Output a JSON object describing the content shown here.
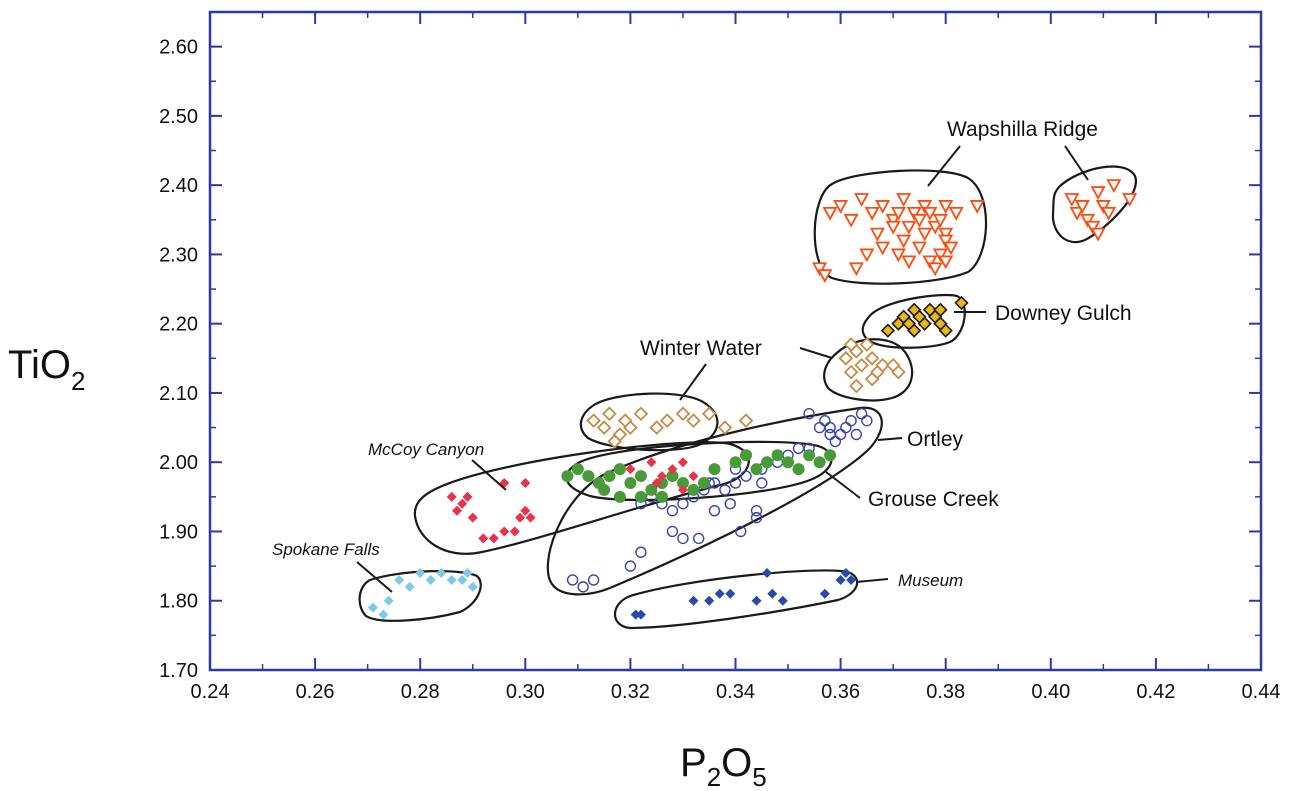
{
  "chart_data": {
    "type": "scatter",
    "title": "",
    "xlabel": {
      "main": "P",
      "sub1": "2",
      "mid": "O",
      "sub2": "5"
    },
    "ylabel": {
      "main": "TiO",
      "sub": "2"
    },
    "xlim": [
      0.24,
      0.44
    ],
    "ylim": [
      1.7,
      2.65
    ],
    "x_ticks": [
      "0.24",
      "0.26",
      "0.28",
      "0.30",
      "0.32",
      "0.34",
      "0.36",
      "0.38",
      "0.40",
      "0.42",
      "0.44"
    ],
    "y_ticks": [
      "1.70",
      "1.80",
      "1.90",
      "2.00",
      "2.10",
      "2.20",
      "2.30",
      "2.40",
      "2.50",
      "2.60"
    ],
    "grid": false,
    "colors": {
      "axis": "#2b3aa8",
      "outline": "#1a1a1a"
    },
    "series": [
      {
        "name": "Wapshilla Ridge",
        "marker": "triangle-down-open",
        "color": "#ff4a10",
        "points": [
          [
            0.358,
            2.36
          ],
          [
            0.36,
            2.37
          ],
          [
            0.362,
            2.35
          ],
          [
            0.364,
            2.38
          ],
          [
            0.366,
            2.36
          ],
          [
            0.368,
            2.37
          ],
          [
            0.37,
            2.35
          ],
          [
            0.371,
            2.36
          ],
          [
            0.372,
            2.38
          ],
          [
            0.373,
            2.34
          ],
          [
            0.374,
            2.36
          ],
          [
            0.375,
            2.35
          ],
          [
            0.376,
            2.37
          ],
          [
            0.377,
            2.36
          ],
          [
            0.378,
            2.34
          ],
          [
            0.379,
            2.35
          ],
          [
            0.38,
            2.33
          ],
          [
            0.38,
            2.37
          ],
          [
            0.382,
            2.36
          ],
          [
            0.367,
            2.33
          ],
          [
            0.368,
            2.31
          ],
          [
            0.371,
            2.3
          ],
          [
            0.373,
            2.29
          ],
          [
            0.375,
            2.31
          ],
          [
            0.377,
            2.29
          ],
          [
            0.378,
            2.28
          ],
          [
            0.379,
            2.3
          ],
          [
            0.38,
            2.32
          ],
          [
            0.381,
            2.31
          ],
          [
            0.376,
            2.33
          ],
          [
            0.356,
            2.28
          ],
          [
            0.357,
            2.27
          ],
          [
            0.365,
            2.3
          ],
          [
            0.363,
            2.28
          ],
          [
            0.386,
            2.37
          ],
          [
            0.372,
            2.32
          ],
          [
            0.37,
            2.34
          ],
          [
            0.38,
            2.29
          ],
          [
            0.404,
            2.38
          ],
          [
            0.405,
            2.36
          ],
          [
            0.406,
            2.37
          ],
          [
            0.407,
            2.35
          ],
          [
            0.408,
            2.34
          ],
          [
            0.409,
            2.39
          ],
          [
            0.41,
            2.37
          ],
          [
            0.411,
            2.36
          ],
          [
            0.412,
            2.4
          ],
          [
            0.415,
            2.38
          ],
          [
            0.409,
            2.33
          ]
        ]
      },
      {
        "name": "Downey Gulch",
        "marker": "diamond-yellow",
        "color": "#e8b817",
        "points": [
          [
            0.369,
            2.19
          ],
          [
            0.371,
            2.2
          ],
          [
            0.372,
            2.21
          ],
          [
            0.373,
            2.2
          ],
          [
            0.374,
            2.22
          ],
          [
            0.375,
            2.21
          ],
          [
            0.376,
            2.2
          ],
          [
            0.377,
            2.22
          ],
          [
            0.378,
            2.21
          ],
          [
            0.379,
            2.2
          ],
          [
            0.38,
            2.19
          ],
          [
            0.379,
            2.22
          ],
          [
            0.383,
            2.23
          ],
          [
            0.374,
            2.19
          ]
        ]
      },
      {
        "name": "Winter Water",
        "marker": "diamond-open",
        "color": "#c98a44",
        "points": [
          [
            0.361,
            2.15
          ],
          [
            0.362,
            2.13
          ],
          [
            0.363,
            2.16
          ],
          [
            0.364,
            2.14
          ],
          [
            0.365,
            2.17
          ],
          [
            0.366,
            2.15
          ],
          [
            0.367,
            2.13
          ],
          [
            0.368,
            2.14
          ],
          [
            0.366,
            2.12
          ],
          [
            0.363,
            2.11
          ],
          [
            0.37,
            2.14
          ],
          [
            0.371,
            2.13
          ],
          [
            0.362,
            2.17
          ],
          [
            0.313,
            2.06
          ],
          [
            0.315,
            2.05
          ],
          [
            0.316,
            2.07
          ],
          [
            0.318,
            2.04
          ],
          [
            0.319,
            2.06
          ],
          [
            0.32,
            2.05
          ],
          [
            0.322,
            2.07
          ],
          [
            0.325,
            2.05
          ],
          [
            0.327,
            2.06
          ],
          [
            0.33,
            2.07
          ],
          [
            0.332,
            2.06
          ],
          [
            0.335,
            2.07
          ],
          [
            0.338,
            2.05
          ],
          [
            0.342,
            2.06
          ],
          [
            0.317,
            2.03
          ]
        ]
      },
      {
        "name": "Ortley",
        "marker": "circle-open",
        "color": "#3a45a8",
        "points": [
          [
            0.354,
            2.07
          ],
          [
            0.356,
            2.05
          ],
          [
            0.357,
            2.06
          ],
          [
            0.358,
            2.05
          ],
          [
            0.36,
            2.04
          ],
          [
            0.361,
            2.05
          ],
          [
            0.362,
            2.06
          ],
          [
            0.363,
            2.04
          ],
          [
            0.364,
            2.07
          ],
          [
            0.365,
            2.06
          ],
          [
            0.359,
            2.03
          ],
          [
            0.354,
            2.02
          ],
          [
            0.35,
            2.01
          ],
          [
            0.348,
            2.0
          ],
          [
            0.345,
            1.99
          ],
          [
            0.342,
            1.98
          ],
          [
            0.34,
            1.97
          ],
          [
            0.338,
            1.96
          ],
          [
            0.336,
            1.97
          ],
          [
            0.334,
            1.96
          ],
          [
            0.332,
            1.95
          ],
          [
            0.33,
            1.94
          ],
          [
            0.328,
            1.93
          ],
          [
            0.326,
            1.94
          ],
          [
            0.324,
            1.95
          ],
          [
            0.322,
            1.94
          ],
          [
            0.33,
            1.89
          ],
          [
            0.333,
            1.89
          ],
          [
            0.322,
            1.87
          ],
          [
            0.32,
            1.85
          ],
          [
            0.313,
            1.83
          ],
          [
            0.309,
            1.83
          ],
          [
            0.311,
            1.82
          ],
          [
            0.335,
            1.97
          ],
          [
            0.34,
            1.99
          ],
          [
            0.345,
            1.97
          ],
          [
            0.344,
            1.93
          ],
          [
            0.344,
            1.92
          ],
          [
            0.341,
            1.9
          ],
          [
            0.339,
            1.94
          ],
          [
            0.336,
            1.93
          ],
          [
            0.356,
            2.0
          ],
          [
            0.352,
            2.02
          ],
          [
            0.358,
            2.04
          ],
          [
            0.328,
            1.9
          ]
        ]
      },
      {
        "name": "Grouse Creek",
        "marker": "circle-green",
        "color": "#4a9a3a",
        "points": [
          [
            0.308,
            1.98
          ],
          [
            0.31,
            1.99
          ],
          [
            0.312,
            1.98
          ],
          [
            0.314,
            1.97
          ],
          [
            0.316,
            1.98
          ],
          [
            0.318,
            1.99
          ],
          [
            0.32,
            1.97
          ],
          [
            0.322,
            1.98
          ],
          [
            0.324,
            1.96
          ],
          [
            0.326,
            1.97
          ],
          [
            0.328,
            1.98
          ],
          [
            0.33,
            1.97
          ],
          [
            0.332,
            1.96
          ],
          [
            0.334,
            1.97
          ],
          [
            0.336,
            1.99
          ],
          [
            0.34,
            2.0
          ],
          [
            0.342,
            2.01
          ],
          [
            0.344,
            1.99
          ],
          [
            0.346,
            2.0
          ],
          [
            0.348,
            2.01
          ],
          [
            0.35,
            2.0
          ],
          [
            0.352,
            1.99
          ],
          [
            0.354,
            2.01
          ],
          [
            0.356,
            2.0
          ],
          [
            0.358,
            2.01
          ],
          [
            0.318,
            1.95
          ],
          [
            0.322,
            1.95
          ],
          [
            0.326,
            1.95
          ],
          [
            0.315,
            1.96
          ]
        ]
      },
      {
        "name": "McCoy Canyon",
        "marker": "diamond-filled",
        "color": "#e8334a",
        "points": [
          [
            0.286,
            1.95
          ],
          [
            0.287,
            1.93
          ],
          [
            0.288,
            1.94
          ],
          [
            0.289,
            1.95
          ],
          [
            0.29,
            1.92
          ],
          [
            0.292,
            1.89
          ],
          [
            0.294,
            1.89
          ],
          [
            0.296,
            1.9
          ],
          [
            0.298,
            1.9
          ],
          [
            0.299,
            1.92
          ],
          [
            0.3,
            1.93
          ],
          [
            0.301,
            1.92
          ],
          [
            0.3,
            1.97
          ],
          [
            0.296,
            1.97
          ],
          [
            0.32,
            1.99
          ],
          [
            0.324,
            2.0
          ],
          [
            0.326,
            1.98
          ],
          [
            0.328,
            1.99
          ],
          [
            0.33,
            2.0
          ],
          [
            0.332,
            1.98
          ],
          [
            0.325,
            1.97
          ],
          [
            0.33,
            1.96
          ]
        ]
      },
      {
        "name": "Spokane Falls",
        "marker": "diamond-light",
        "color": "#7ec8ea",
        "points": [
          [
            0.271,
            1.79
          ],
          [
            0.273,
            1.78
          ],
          [
            0.274,
            1.8
          ],
          [
            0.276,
            1.83
          ],
          [
            0.278,
            1.82
          ],
          [
            0.28,
            1.84
          ],
          [
            0.282,
            1.83
          ],
          [
            0.284,
            1.84
          ],
          [
            0.286,
            1.83
          ],
          [
            0.288,
            1.83
          ],
          [
            0.289,
            1.84
          ],
          [
            0.29,
            1.82
          ]
        ]
      },
      {
        "name": "Museum",
        "marker": "diamond-blue",
        "color": "#2a4aa8",
        "points": [
          [
            0.321,
            1.78
          ],
          [
            0.322,
            1.78
          ],
          [
            0.332,
            1.8
          ],
          [
            0.335,
            1.8
          ],
          [
            0.337,
            1.81
          ],
          [
            0.339,
            1.81
          ],
          [
            0.344,
            1.8
          ],
          [
            0.346,
            1.84
          ],
          [
            0.347,
            1.81
          ],
          [
            0.349,
            1.8
          ],
          [
            0.357,
            1.81
          ],
          [
            0.36,
            1.83
          ],
          [
            0.361,
            1.84
          ],
          [
            0.362,
            1.83
          ]
        ]
      }
    ],
    "labels": [
      {
        "text": "Wapshilla Ridge",
        "style": "normal"
      },
      {
        "text": "Downey Gulch",
        "style": "normal"
      },
      {
        "text": "Winter Water",
        "style": "normal"
      },
      {
        "text": "Ortley",
        "style": "normal"
      },
      {
        "text": "Grouse Creek",
        "style": "normal"
      },
      {
        "text": "McCoy Canyon",
        "style": "italic"
      },
      {
        "text": "Spokane Falls",
        "style": "italic"
      },
      {
        "text": "Museum",
        "style": "italic"
      }
    ]
  }
}
